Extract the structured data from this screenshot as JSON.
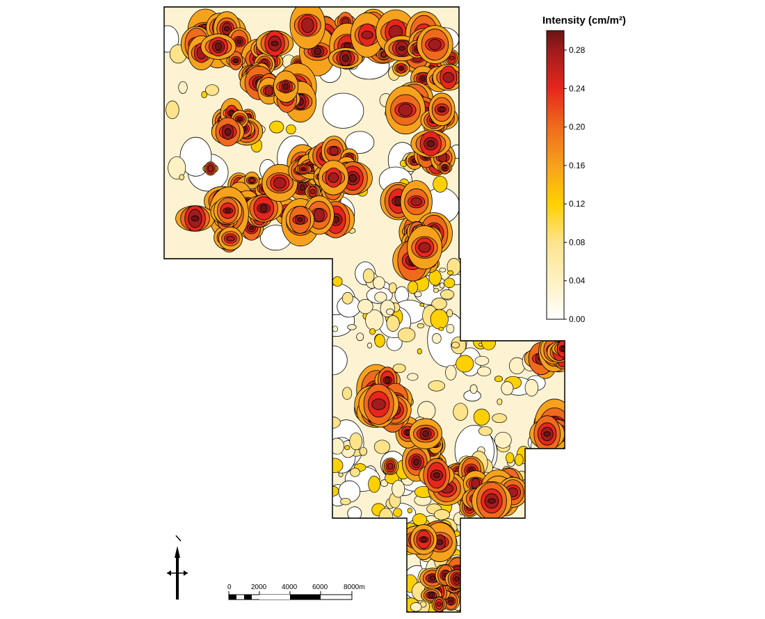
{
  "legend": {
    "title": "Intensity (cm/m²)",
    "ticks": [
      "0.28",
      "0.24",
      "0.20",
      "0.16",
      "0.12",
      "0.08",
      "0.04",
      "0.00"
    ],
    "colors": [
      "#ffffff",
      "#fff1c4",
      "#ffe38a",
      "#ffd000",
      "#f7a21c",
      "#ef6a1c",
      "#e6261d",
      "#a11c1c",
      "#6b1414"
    ]
  },
  "scale_bar": {
    "labels": [
      "0",
      "2000",
      "4000",
      "6000",
      "8000m"
    ]
  },
  "north_arrow": {
    "icon": "north-arrow-icon"
  },
  "map": {
    "outline_color": "#000000"
  }
}
